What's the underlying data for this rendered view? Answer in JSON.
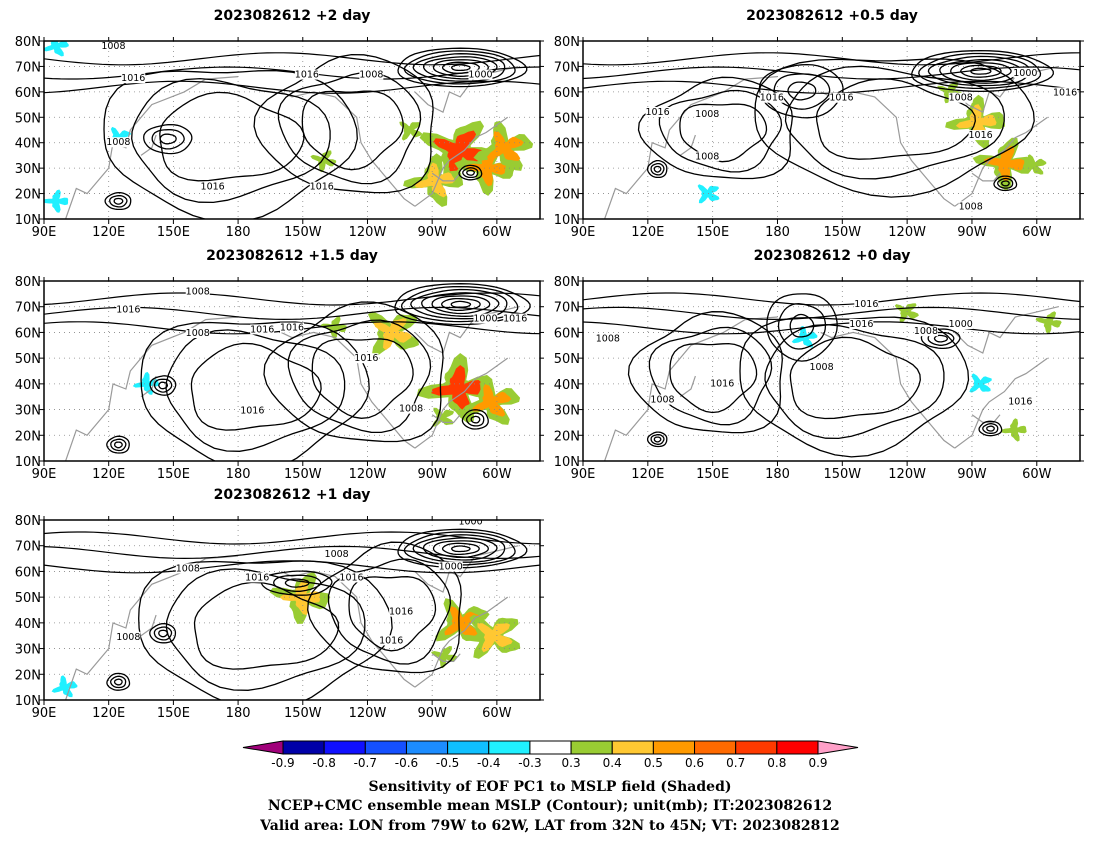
{
  "panels": [
    {
      "title": "2023082612 +2 day",
      "xticks": [
        "90E",
        "120E",
        "150E",
        "180",
        "150W",
        "120W",
        "90W",
        "60W"
      ],
      "yticks": [
        "10N",
        "20N",
        "30N",
        "40N",
        "50N",
        "60N",
        "70N",
        "80N"
      ],
      "contour_labels": [
        "1008",
        "1016",
        "1008",
        "1000",
        "1016",
        "1008",
        "1016",
        "1016"
      ],
      "sensitivity_blobs": [
        {
          "lon": 283,
          "lat": 37,
          "level": 0.8
        },
        {
          "lon": 296,
          "lat": 30,
          "level": 0.6
        },
        {
          "lon": 272,
          "lat": 25,
          "level": 0.5
        },
        {
          "lon": 304,
          "lat": 38,
          "level": 0.6
        },
        {
          "lon": 260,
          "lat": 45,
          "level": 0.4
        },
        {
          "lon": 220,
          "lat": 33,
          "level": 0.4
        },
        {
          "lon": 96,
          "lat": 17,
          "level": -0.4
        },
        {
          "lon": 96,
          "lat": 78,
          "level": -0.4
        },
        {
          "lon": 125,
          "lat": 42,
          "level": -0.4
        }
      ]
    },
    {
      "title": "2023082612 +0.5 day",
      "xticks": [
        "90E",
        "120E",
        "150E",
        "180",
        "150W",
        "120W",
        "90W",
        "60W"
      ],
      "yticks": [
        "10N",
        "20N",
        "30N",
        "40N",
        "50N",
        "60N",
        "70N",
        "80N"
      ],
      "contour_labels": [
        "1008",
        "1016",
        "1016",
        "1008",
        "1016",
        "1000",
        "1008",
        "1016",
        "1008",
        "1016"
      ],
      "sensitivity_blobs": [
        {
          "lon": 286,
          "lat": 32,
          "level": 0.6
        },
        {
          "lon": 273,
          "lat": 48,
          "level": 0.5
        },
        {
          "lon": 299,
          "lat": 31,
          "level": 0.4
        },
        {
          "lon": 148,
          "lat": 20,
          "level": -0.4
        },
        {
          "lon": 260,
          "lat": 60,
          "level": 0.4
        }
      ]
    },
    {
      "title": "2023082612 +1.5 day",
      "xticks": [
        "90E",
        "120E",
        "150E",
        "180",
        "150W",
        "120W",
        "90W",
        "60W"
      ],
      "yticks": [
        "10N",
        "20N",
        "30N",
        "40N",
        "50N",
        "60N",
        "70N",
        "80N"
      ],
      "contour_labels": [
        "1016",
        "1008",
        "1008",
        "1016",
        "1016",
        "1000",
        "1016",
        "1016",
        "1016",
        "1008"
      ],
      "sensitivity_blobs": [
        {
          "lon": 283,
          "lat": 38,
          "level": 0.8
        },
        {
          "lon": 298,
          "lat": 33,
          "level": 0.6
        },
        {
          "lon": 275,
          "lat": 27,
          "level": 0.4
        },
        {
          "lon": 252,
          "lat": 60,
          "level": 0.5
        },
        {
          "lon": 225,
          "lat": 62,
          "level": 0.4
        },
        {
          "lon": 138,
          "lat": 40,
          "level": -0.4
        }
      ]
    },
    {
      "title": "2023082612 +0 day",
      "xticks": [
        "90E",
        "120E",
        "150E",
        "180",
        "150W",
        "120W",
        "90W",
        "60W"
      ],
      "yticks": [
        "10N",
        "20N",
        "30N",
        "40N",
        "50N",
        "60N",
        "70N",
        "80N"
      ],
      "contour_labels": [
        "1008",
        "1008",
        "1016",
        "1008",
        "1016",
        "1016",
        "1008",
        "1000",
        "1016"
      ],
      "sensitivity_blobs": [
        {
          "lon": 193,
          "lat": 58,
          "level": -0.4
        },
        {
          "lon": 274,
          "lat": 40,
          "level": -0.4
        },
        {
          "lon": 240,
          "lat": 68,
          "level": 0.4
        },
        {
          "lon": 306,
          "lat": 64,
          "level": 0.4
        },
        {
          "lon": 290,
          "lat": 22,
          "level": 0.4
        }
      ]
    },
    {
      "title": "2023082612 +1 day",
      "xticks": [
        "90E",
        "120E",
        "150E",
        "180",
        "150W",
        "120W",
        "90W",
        "60W"
      ],
      "yticks": [
        "10N",
        "20N",
        "30N",
        "40N",
        "50N",
        "60N",
        "70N",
        "80N"
      ],
      "contour_labels": [
        "1008",
        "1016",
        "1008",
        "1016",
        "1000",
        "1016",
        "1016",
        "1008",
        "1000"
      ],
      "sensitivity_blobs": [
        {
          "lon": 284,
          "lat": 40,
          "level": 0.6
        },
        {
          "lon": 299,
          "lat": 35,
          "level": 0.5
        },
        {
          "lon": 276,
          "lat": 27,
          "level": 0.4
        },
        {
          "lon": 210,
          "lat": 50,
          "level": 0.5
        },
        {
          "lon": 100,
          "lat": 15,
          "level": -0.4
        }
      ]
    }
  ],
  "colorbar": {
    "labels": [
      "-0.9",
      "-0.8",
      "-0.7",
      "-0.6",
      "-0.5",
      "-0.4",
      "-0.3",
      "0.3",
      "0.4",
      "0.5",
      "0.6",
      "0.7",
      "0.8",
      "0.9"
    ],
    "colors": [
      "#a0007a",
      "#0000a8",
      "#1010ff",
      "#1550ff",
      "#1c8cff",
      "#10c0ff",
      "#20f0ff",
      "#ffffff",
      "#99cc33",
      "#ffc832",
      "#ff9a00",
      "#ff6a00",
      "#ff3a00",
      "#ff0000",
      "#ffa0c8"
    ]
  },
  "caption": [
    "Sensitivity of EOF PC1 to MSLP field (Shaded)",
    "NCEP+CMC ensemble mean MSLP (Contour); unit(mb); IT:2023082612",
    "Valid area: LON from 79W to 62W, LAT from 32N to 45N; VT: 2023082812"
  ]
}
